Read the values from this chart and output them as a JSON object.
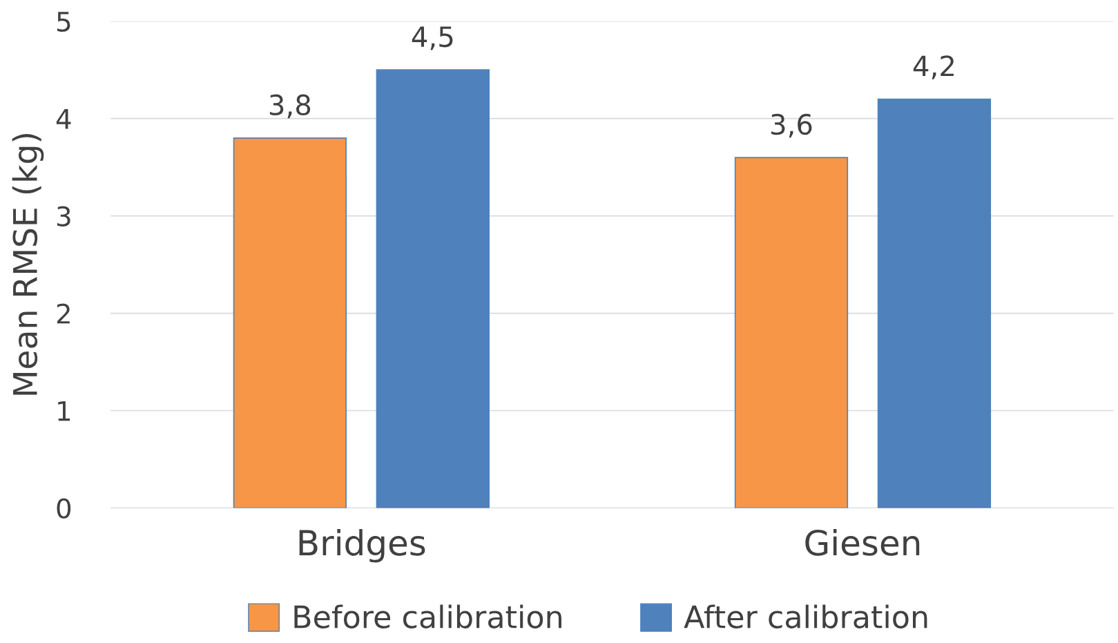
{
  "chart_data": {
    "type": "bar",
    "ylabel": "Mean RMSE (kg)",
    "categories": [
      "Bridges",
      "Giesen"
    ],
    "series": [
      {
        "name": "Before calibration",
        "color": "#f79646",
        "values": [
          3.8,
          3.6
        ],
        "value_labels": [
          "3,8",
          "3,6"
        ]
      },
      {
        "name": "After calibration",
        "color": "#4f81bd",
        "values": [
          4.5,
          4.2
        ],
        "value_labels": [
          "4,5",
          "4,2"
        ]
      }
    ],
    "ylim": [
      0,
      5
    ],
    "yticks": [
      0,
      1,
      2,
      3,
      4,
      5
    ],
    "grid": "y",
    "legend": "bottom"
  }
}
